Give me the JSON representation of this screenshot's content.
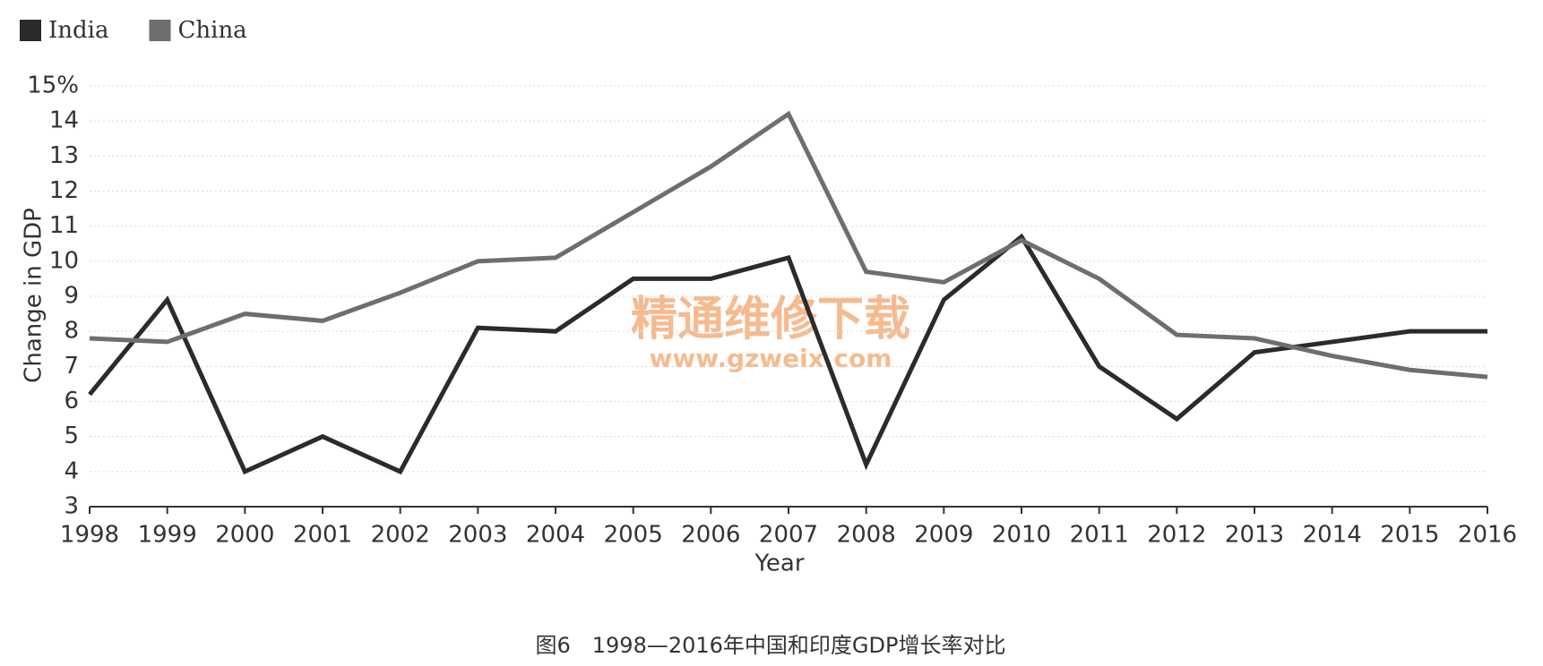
{
  "chart_data": {
    "type": "line",
    "x_label": "Year",
    "y_label": "Change in GDP",
    "caption": "图6　1998—2016年中国和印度GDP增长率对比",
    "watermark": [
      "精通维修下载",
      "www.gzweix.com"
    ],
    "categories": [
      "1998",
      "1999",
      "2000",
      "2001",
      "2002",
      "2003",
      "2004",
      "2005",
      "2006",
      "2007",
      "2008",
      "2009",
      "2010",
      "2011",
      "2012",
      "2013",
      "2014",
      "2015",
      "2016"
    ],
    "series": [
      {
        "name": "India",
        "color": "#2b2b2b",
        "values": [
          6.2,
          8.9,
          4.0,
          5.0,
          4.0,
          8.1,
          8.0,
          9.5,
          9.5,
          10.1,
          4.2,
          8.9,
          10.7,
          7.0,
          5.5,
          7.4,
          7.7,
          8.0,
          8.0
        ]
      },
      {
        "name": "China",
        "color": "#6e6e6e",
        "values": [
          7.8,
          7.7,
          8.5,
          8.3,
          9.1,
          10.0,
          10.1,
          11.4,
          12.7,
          14.2,
          9.7,
          9.4,
          10.6,
          9.5,
          7.9,
          7.8,
          7.3,
          6.9,
          6.7
        ]
      }
    ],
    "ylim": [
      3,
      15
    ],
    "yticks": [
      3,
      4,
      5,
      6,
      7,
      8,
      9,
      10,
      11,
      12,
      13,
      14,
      {
        "value": 15,
        "label": "15%"
      }
    ],
    "grid": true,
    "legend": "top-left"
  }
}
